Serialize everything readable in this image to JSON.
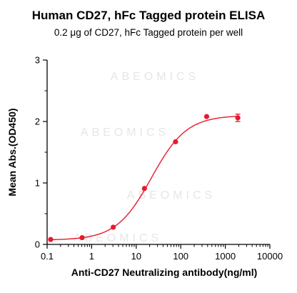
{
  "chart_data": {
    "type": "scatter",
    "title": "Human CD27, hFc Tagged protein ELISA",
    "subtitle": "0.2 μg of CD27, hFc Tagged protein per well",
    "xlabel": "Anti-CD27 Neutralizing antibody(ng/ml)",
    "ylabel": "Mean Abs.(OD450)",
    "xscale": "log",
    "xlim": [
      0.1,
      10000
    ],
    "ylim": [
      0,
      3
    ],
    "xticks": [
      "0.1",
      "1",
      "10",
      "100",
      "1000",
      "10000"
    ],
    "yticks": [
      "0",
      "1",
      "2",
      "3"
    ],
    "grid": false,
    "color": "#e8192c",
    "watermark": "ABEOMICS",
    "series": [
      {
        "x": [
          0.12,
          0.61,
          3.05,
          15.3,
          76.3,
          381,
          1907
        ],
        "y": [
          0.08,
          0.11,
          0.28,
          0.91,
          1.67,
          2.08,
          2.06
        ],
        "error": [
          0.01,
          0.01,
          0.01,
          0.02,
          0.02,
          0.04,
          0.06
        ]
      }
    ],
    "fit": {
      "bottom": 0.07,
      "top": 2.1,
      "ec50": 22,
      "hill": 1.1
    }
  }
}
